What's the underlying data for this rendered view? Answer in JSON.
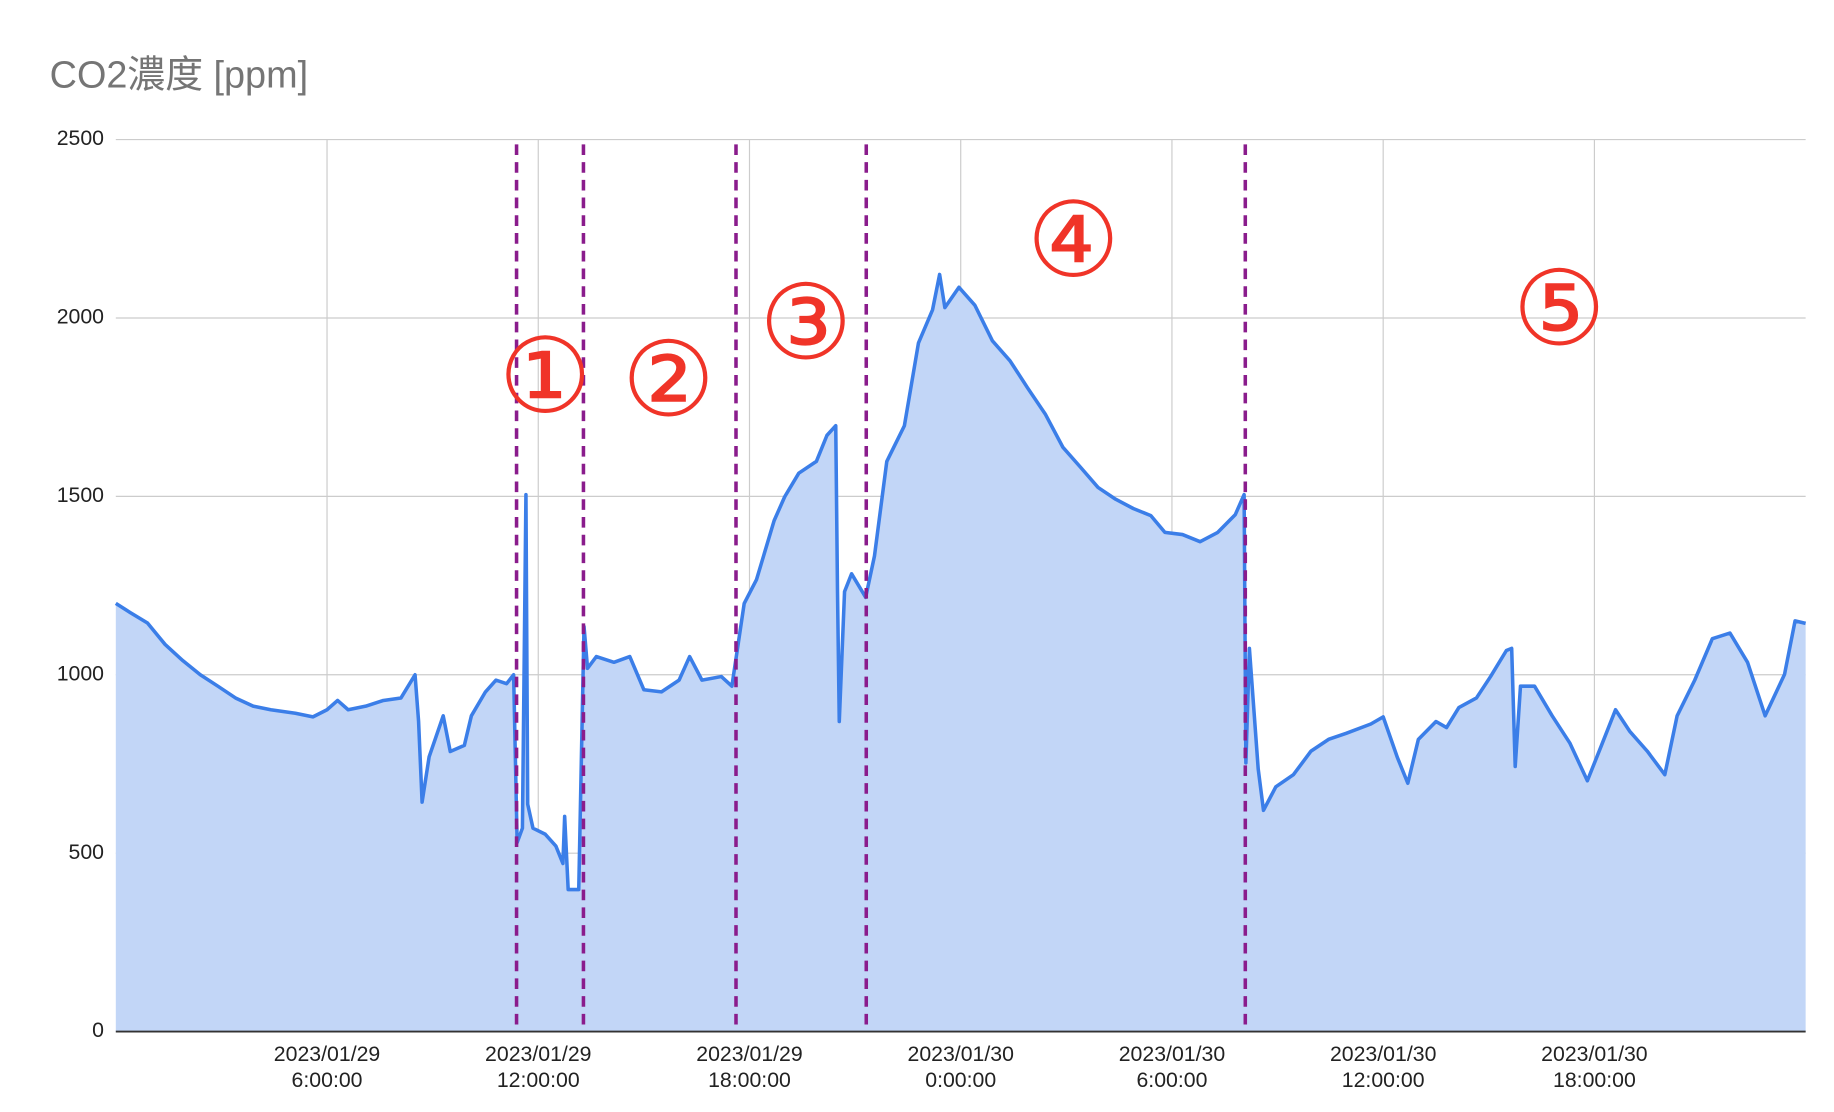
{
  "chart_data": {
    "type": "area",
    "title": "CO2濃度 [ppm]",
    "color": "#3b7ee8",
    "fill_color": "#c2d6f7",
    "grid": true,
    "xlim": [
      "2023/01/29 00:00:00",
      "2023/01/31 00:00:00"
    ],
    "xticks": [
      {
        "value": "2023/01/29 06:00:00",
        "label": "2023/01/29\n6:00:00"
      },
      {
        "value": "2023/01/29 12:00:00",
        "label": "2023/01/29\n12:00:00"
      },
      {
        "value": "2023/01/29 18:00:00",
        "label": "2023/01/29\n18:00:00"
      },
      {
        "value": "2023/01/30 00:00:00",
        "label": "2023/01/30\n0:00:00"
      },
      {
        "value": "2023/01/30 06:00:00",
        "label": "2023/01/30\n6:00:00"
      },
      {
        "value": "2023/01/30 12:00:00",
        "label": "2023/01/30\n12:00:00"
      },
      {
        "value": "2023/01/30 18:00:00",
        "label": "2023/01/30\n18:00:00"
      }
    ],
    "ylim": [
      0,
      2500
    ],
    "yticks": [
      0,
      500,
      1000,
      1500,
      2000,
      2500
    ],
    "x": [
      "2023/01/29 00:00",
      "2023/01/29 00:24",
      "2023/01/29 00:54",
      "2023/01/29 01:24",
      "2023/01/29 01:54",
      "2023/01/29 02:24",
      "2023/01/29 02:54",
      "2023/01/29 03:24",
      "2023/01/29 03:54",
      "2023/01/29 04:24",
      "2023/01/29 05:06",
      "2023/01/29 05:36",
      "2023/01/29 06:00",
      "2023/01/29 06:18",
      "2023/01/29 06:36",
      "2023/01/29 07:06",
      "2023/01/29 07:36",
      "2023/01/29 08:06",
      "2023/01/29 08:30",
      "2023/01/29 08:36",
      "2023/01/29 08:42",
      "2023/01/29 08:54",
      "2023/01/29 09:18",
      "2023/01/29 09:30",
      "2023/01/29 09:54",
      "2023/01/29 10:06",
      "2023/01/29 10:30",
      "2023/01/29 10:48",
      "2023/01/29 11:06",
      "2023/01/29 11:18",
      "2023/01/29 11:24",
      "2023/01/29 11:33",
      "2023/01/29 11:39",
      "2023/01/29 11:42",
      "2023/01/29 11:51",
      "2023/01/29 12:12",
      "2023/01/29 12:30",
      "2023/01/29 12:42",
      "2023/01/29 12:45",
      "2023/01/29 12:51",
      "2023/01/29 13:09",
      "2023/01/29 13:18",
      "2023/01/29 13:24",
      "2023/01/29 13:39",
      "2023/01/29 14:09",
      "2023/01/29 14:36",
      "2023/01/29 15:00",
      "2023/01/29 15:30",
      "2023/01/29 16:00",
      "2023/01/29 16:18",
      "2023/01/29 16:39",
      "2023/01/29 17:12",
      "2023/01/29 17:30",
      "2023/01/29 17:51",
      "2023/01/29 18:12",
      "2023/01/29 18:42",
      "2023/01/29 19:00",
      "2023/01/29 19:24",
      "2023/01/29 19:54",
      "2023/01/29 20:12",
      "2023/01/29 20:27",
      "2023/01/29 20:30",
      "2023/01/29 20:33",
      "2023/01/29 20:42",
      "2023/01/29 20:54",
      "2023/01/29 21:18",
      "2023/01/29 21:33",
      "2023/01/29 21:54",
      "2023/01/29 22:24",
      "2023/01/29 22:48",
      "2023/01/29 23:12",
      "2023/01/29 23:24",
      "2023/01/29 23:33",
      "2023/01/29 23:57",
      "2023/01/30 00:24",
      "2023/01/30 00:54",
      "2023/01/30 01:24",
      "2023/01/30 01:54",
      "2023/01/30 02:24",
      "2023/01/30 02:54",
      "2023/01/30 03:24",
      "2023/01/30 03:54",
      "2023/01/30 04:24",
      "2023/01/30 04:54",
      "2023/01/30 05:24",
      "2023/01/30 05:48",
      "2023/01/30 06:18",
      "2023/01/30 06:48",
      "2023/01/30 07:18",
      "2023/01/30 07:48",
      "2023/01/30 08:03",
      "2023/01/30 08:06",
      "2023/01/30 08:12",
      "2023/01/30 08:27",
      "2023/01/30 08:36",
      "2023/01/30 08:57",
      "2023/01/30 09:27",
      "2023/01/30 09:57",
      "2023/01/30 10:27",
      "2023/01/30 10:57",
      "2023/01/30 11:39",
      "2023/01/30 12:00",
      "2023/01/30 12:24",
      "2023/01/30 12:42",
      "2023/01/30 13:00",
      "2023/01/30 13:30",
      "2023/01/30 13:48",
      "2023/01/30 14:09",
      "2023/01/30 14:39",
      "2023/01/30 15:03",
      "2023/01/30 15:30",
      "2023/01/30 15:39",
      "2023/01/30 15:45",
      "2023/01/30 15:54",
      "2023/01/30 16:18",
      "2023/01/30 16:48",
      "2023/01/30 17:18",
      "2023/01/30 17:48",
      "2023/01/30 18:12",
      "2023/01/30 18:36",
      "2023/01/30 19:00",
      "2023/01/30 19:30",
      "2023/01/30 20:00",
      "2023/01/30 20:21",
      "2023/01/30 20:51",
      "2023/01/30 21:21",
      "2023/01/30 21:51",
      "2023/01/30 22:21",
      "2023/01/30 22:51",
      "2023/01/30 23:24",
      "2023/01/30 23:42",
      "2023/01/31 00:00"
    ],
    "values": [
      1200,
      1175,
      1145,
      1085,
      1040,
      1000,
      968,
      935,
      912,
      902,
      892,
      882,
      902,
      928,
      902,
      912,
      928,
      935,
      1000,
      870,
      643,
      770,
      885,
      785,
      802,
      885,
      952,
      985,
      975,
      1000,
      530,
      570,
      1505,
      637,
      570,
      553,
      520,
      471,
      603,
      398,
      398,
      1135,
      1018,
      1051,
      1035,
      1051,
      958,
      952,
      985,
      1051,
      985,
      995,
      968,
      1200,
      1267,
      1432,
      1499,
      1565,
      1598,
      1671,
      1698,
      1233,
      869,
      1233,
      1283,
      1217,
      1333,
      1598,
      1698,
      1930,
      2023,
      2122,
      2029,
      2086,
      2036,
      1936,
      1880,
      1804,
      1731,
      1638,
      1582,
      1525,
      1492,
      1466,
      1446,
      1399,
      1393,
      1373,
      1399,
      1449,
      1505,
      753,
      1074,
      736,
      620,
      686,
      720,
      786,
      819,
      836,
      862,
      882,
      769,
      696,
      819,
      869,
      852,
      908,
      935,
      995,
      1068,
      1074,
      743,
      968,
      968,
      885,
      809,
      703,
      802,
      902,
      842,
      786,
      720,
      885,
      985,
      1101,
      1117,
      1035,
      885,
      1001,
      1151,
      1144
    ],
    "dividers": [
      "2023/01/29 11:23",
      "2023/01/29 13:17",
      "2023/01/29 17:37",
      "2023/01/29 21:19",
      "2023/01/30 08:05"
    ],
    "divider_color": "#8a1c8c",
    "annotation_color": "#f03428",
    "annotations": [
      {
        "text": "①",
        "x": "2023/01/29 12:12",
        "y": 1813
      },
      {
        "text": "②",
        "x": "2023/01/29 15:42",
        "y": 1804
      },
      {
        "text": "③",
        "x": "2023/01/29 19:36",
        "y": 1963
      },
      {
        "text": "④",
        "x": "2023/01/30 03:12",
        "y": 2195
      },
      {
        "text": "⑤",
        "x": "2023/01/30 17:00",
        "y": 2003
      }
    ]
  }
}
